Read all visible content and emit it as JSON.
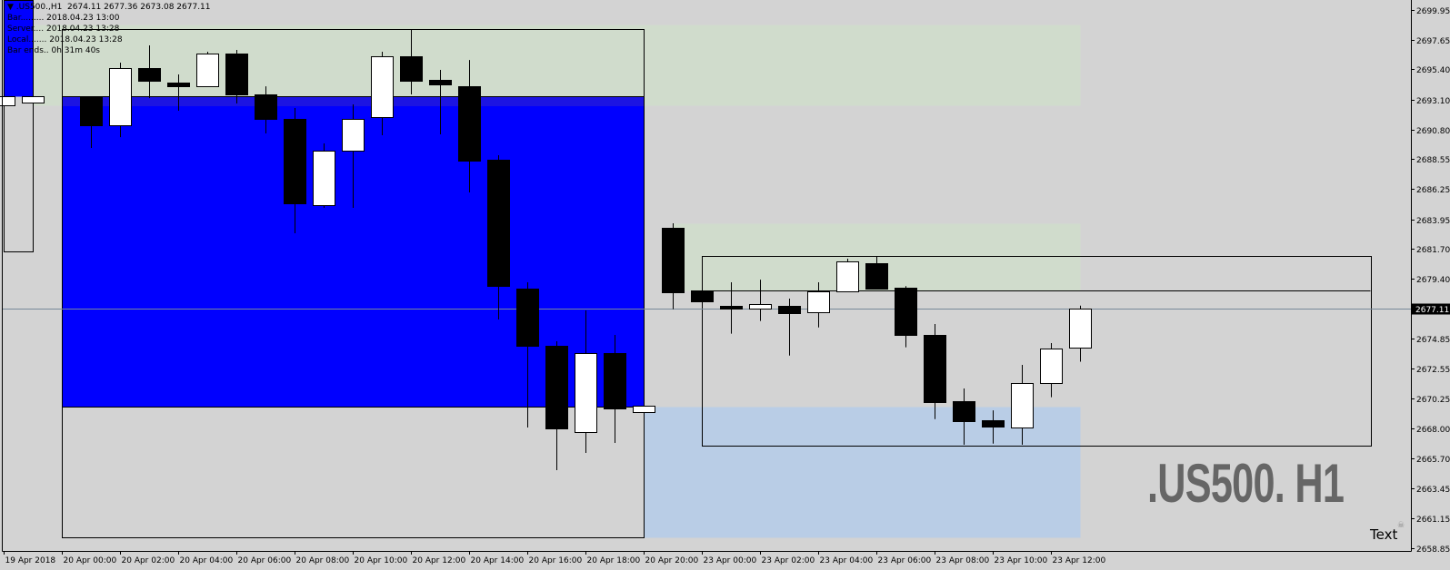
{
  "header": {
    "symbol_line": "▼ .US500.,H1  2674.11 2677.36 2673.08 2677.11",
    "bar": "Bar......... 2018.04.23 13:00",
    "server": "Server.... 2018.04.23 13:28",
    "local": "Local....... 2018.04.23 13:28",
    "bar_ends": "Bar ends.. 0h 31m 40s"
  },
  "watermark": ".US500. H1",
  "text_object": "Text",
  "text_object_icon": "skull-icon",
  "colors": {
    "background": "#d3d3d3",
    "bull_body": "#ffffff",
    "bear_body": "#000000",
    "blue_zone": "#0000ff",
    "supply_zone": "#d0dccc",
    "demand_zone": "#b9cde6",
    "price_line": "#778899"
  },
  "chart_data": {
    "type": "candlestick",
    "symbol": ".US500.",
    "timeframe": "H1",
    "ylim": [
      2658.85,
      2699.95
    ],
    "grid": false,
    "last_price": "2677.11",
    "y_ticks": [
      "2699.95",
      "2697.65",
      "2695.40",
      "2693.10",
      "2690.80",
      "2688.55",
      "2686.25",
      "2683.95",
      "2681.70",
      "2679.40",
      "2674.85",
      "2672.55",
      "2670.25",
      "2668.00",
      "2665.70",
      "2663.45",
      "2661.15",
      "2658.85"
    ],
    "x_ticks": [
      {
        "time": "2018-04-19 22:00",
        "label": "19 Apr 2018"
      },
      {
        "time": "2018-04-20 00:00",
        "label": "20 Apr 00:00"
      },
      {
        "time": "2018-04-20 02:00",
        "label": "20 Apr 02:00"
      },
      {
        "time": "2018-04-20 04:00",
        "label": "20 Apr 04:00"
      },
      {
        "time": "2018-04-20 06:00",
        "label": "20 Apr 06:00"
      },
      {
        "time": "2018-04-20 08:00",
        "label": "20 Apr 08:00"
      },
      {
        "time": "2018-04-20 10:00",
        "label": "20 Apr 10:00"
      },
      {
        "time": "2018-04-20 12:00",
        "label": "20 Apr 12:00"
      },
      {
        "time": "2018-04-20 14:00",
        "label": "20 Apr 14:00"
      },
      {
        "time": "2018-04-20 16:00",
        "label": "20 Apr 16:00"
      },
      {
        "time": "2018-04-20 18:00",
        "label": "20 Apr 18:00"
      },
      {
        "time": "2018-04-20 20:00",
        "label": "20 Apr 20:00"
      },
      {
        "time": "2018-04-23 00:00",
        "label": "23 Apr 00:00"
      },
      {
        "time": "2018-04-23 02:00",
        "label": "23 Apr 02:00"
      },
      {
        "time": "2018-04-23 04:00",
        "label": "23 Apr 04:00"
      },
      {
        "time": "2018-04-23 06:00",
        "label": "23 Apr 06:00"
      },
      {
        "time": "2018-04-23 08:00",
        "label": "23 Apr 08:00"
      },
      {
        "time": "2018-04-23 10:00",
        "label": "23 Apr 10:00"
      },
      {
        "time": "2018-04-23 12:00",
        "label": "23 Apr 12:00"
      }
    ],
    "candles": [
      {
        "t": "2018-04-19 22:00",
        "o": 2692.66,
        "h": 2694.39,
        "l": 2691.0,
        "c": 2693.35
      },
      {
        "t": "2018-04-19 23:00",
        "o": 2692.87,
        "h": 2693.35,
        "l": 2692.87,
        "c": 2693.35
      },
      {
        "t": "2018-04-20 01:00",
        "o": 2693.35,
        "h": 2693.35,
        "l": 2689.4,
        "c": 2691.13
      },
      {
        "t": "2018-04-20 02:00",
        "o": 2691.13,
        "h": 2695.92,
        "l": 2690.23,
        "c": 2695.5
      },
      {
        "t": "2018-04-20 03:00",
        "o": 2695.5,
        "h": 2697.23,
        "l": 2693.21,
        "c": 2694.53
      },
      {
        "t": "2018-04-20 04:00",
        "o": 2694.39,
        "h": 2695.02,
        "l": 2692.24,
        "c": 2694.11
      },
      {
        "t": "2018-04-20 05:00",
        "o": 2694.11,
        "h": 2696.75,
        "l": 2694.11,
        "c": 2696.61
      },
      {
        "t": "2018-04-20 06:00",
        "o": 2696.61,
        "h": 2696.89,
        "l": 2692.8,
        "c": 2693.49
      },
      {
        "t": "2018-04-20 07:00",
        "o": 2693.49,
        "h": 2694.11,
        "l": 2690.51,
        "c": 2691.62
      },
      {
        "t": "2018-04-20 08:00",
        "o": 2691.62,
        "h": 2692.45,
        "l": 2682.89,
        "c": 2685.18
      },
      {
        "t": "2018-04-20 09:00",
        "o": 2685.0,
        "h": 2689.75,
        "l": 2684.83,
        "c": 2689.19
      },
      {
        "t": "2018-04-20 10:00",
        "o": 2689.19,
        "h": 2692.73,
        "l": 2684.83,
        "c": 2691.62
      },
      {
        "t": "2018-04-20 11:00",
        "o": 2691.76,
        "h": 2696.75,
        "l": 2690.37,
        "c": 2696.4
      },
      {
        "t": "2018-04-20 12:00",
        "o": 2696.4,
        "h": 2698.48,
        "l": 2693.49,
        "c": 2694.53
      },
      {
        "t": "2018-04-20 13:00",
        "o": 2694.6,
        "h": 2695.36,
        "l": 2690.44,
        "c": 2694.25
      },
      {
        "t": "2018-04-20 14:00",
        "o": 2694.11,
        "h": 2696.12,
        "l": 2686.01,
        "c": 2688.43
      },
      {
        "t": "2018-04-20 15:00",
        "o": 2688.5,
        "h": 2688.85,
        "l": 2676.31,
        "c": 2678.87
      },
      {
        "t": "2018-04-20 16:00",
        "o": 2678.66,
        "h": 2679.15,
        "l": 2668.06,
        "c": 2674.3
      },
      {
        "t": "2018-04-20 17:00",
        "o": 2674.3,
        "h": 2674.64,
        "l": 2664.8,
        "c": 2667.99
      },
      {
        "t": "2018-04-20 18:00",
        "o": 2667.71,
        "h": 2677.0,
        "l": 2666.12,
        "c": 2673.74
      },
      {
        "t": "2018-04-20 19:00",
        "o": 2673.74,
        "h": 2675.13,
        "l": 2666.88,
        "c": 2669.51
      },
      {
        "t": "2018-04-20 20:00",
        "o": 2669.24,
        "h": 2669.72,
        "l": 2669.24,
        "c": 2669.72
      },
      {
        "t": "2018-04-20 21:00",
        "o": 2683.3,
        "h": 2683.65,
        "l": 2677.09,
        "c": 2678.4
      },
      {
        "t": "2018-04-23 00:00",
        "o": 2678.52,
        "h": 2678.52,
        "l": 2677.71,
        "c": 2677.71
      },
      {
        "t": "2018-04-23 01:00",
        "o": 2677.34,
        "h": 2679.15,
        "l": 2675.22,
        "c": 2677.12
      },
      {
        "t": "2018-04-23 02:00",
        "o": 2677.12,
        "h": 2679.35,
        "l": 2676.19,
        "c": 2677.46
      },
      {
        "t": "2018-04-23 03:00",
        "o": 2677.34,
        "h": 2677.9,
        "l": 2673.55,
        "c": 2676.81
      },
      {
        "t": "2018-04-23 04:00",
        "o": 2676.84,
        "h": 2679.15,
        "l": 2675.7,
        "c": 2678.45
      },
      {
        "t": "2018-04-23 05:00",
        "o": 2678.45,
        "h": 2680.95,
        "l": 2678.45,
        "c": 2680.72
      },
      {
        "t": "2018-04-23 06:00",
        "o": 2680.6,
        "h": 2681.14,
        "l": 2678.61,
        "c": 2678.68
      },
      {
        "t": "2018-04-23 07:00",
        "o": 2678.73,
        "h": 2678.85,
        "l": 2674.18,
        "c": 2675.15
      },
      {
        "t": "2018-04-23 08:00",
        "o": 2675.13,
        "h": 2675.96,
        "l": 2668.7,
        "c": 2670.02
      },
      {
        "t": "2018-04-23 09:00",
        "o": 2670.07,
        "h": 2671.04,
        "l": 2666.74,
        "c": 2668.56
      },
      {
        "t": "2018-04-23 10:00",
        "o": 2668.61,
        "h": 2669.37,
        "l": 2666.83,
        "c": 2668.15
      },
      {
        "t": "2018-04-23 11:00",
        "o": 2668.04,
        "h": 2672.84,
        "l": 2666.74,
        "c": 2671.43
      },
      {
        "t": "2018-04-23 12:00",
        "o": 2671.43,
        "h": 2674.5,
        "l": 2670.37,
        "c": 2674.07
      },
      {
        "t": "2018-04-23 13:00",
        "o": 2674.11,
        "h": 2677.36,
        "l": 2673.08,
        "c": 2677.11
      }
    ],
    "objects": [
      {
        "name": "supply-zone-upper",
        "t1": "2018-04-19 23:00",
        "t2": "2018-04-23 13:00",
        "p1": 2698.83,
        "p2": 2692.66,
        "fill": "#d0dccc"
      },
      {
        "name": "supply-zone-lower",
        "t1": "2018-04-20 21:00",
        "t2": "2018-04-23 13:00",
        "p1": 2683.65,
        "p2": 2678.52,
        "fill": "#d0dccc"
      },
      {
        "name": "demand-zone",
        "t1": "2018-04-20 20:00",
        "t2": "2018-04-23 13:00",
        "p1": 2669.68,
        "p2": 2659.67,
        "fill": "#b9cde6"
      },
      {
        "name": "blue-zone-left",
        "t1": "2018-04-19 22:00",
        "t2": "2018-04-19 23:00",
        "p1": 2700.7,
        "p2": 2693.35,
        "fill": "#0000ff"
      },
      {
        "name": "range-box-left",
        "t1": "2018-04-19 22:00",
        "t2": "2018-04-19 23:00",
        "p1": 2700.7,
        "p2": 2681.5,
        "stroke": "#000000"
      },
      {
        "name": "blue-zone",
        "t1": "2018-04-20 00:00",
        "t2": "2018-04-20 20:00",
        "p1": 2693.35,
        "p2": 2669.68,
        "fill": "#0000ff",
        "stroke": "#000000"
      },
      {
        "name": "range-box-friday",
        "t1": "2018-04-20 00:00",
        "t2": "2018-04-20 20:00",
        "p1": 2698.48,
        "p2": 2659.67,
        "stroke": "#000000"
      },
      {
        "name": "range-box-monday",
        "t1": "2018-04-23 00:00",
        "t2": "2018-04-23 23:00",
        "p1": 2681.16,
        "p2": 2666.69,
        "stroke": "#000000"
      },
      {
        "name": "level-line-2678",
        "t1": "2018-04-23 00:00",
        "t2": "2018-04-23 23:00",
        "p1": 2678.52,
        "p2": 2678.52,
        "stroke": "#000000"
      },
      {
        "name": "level-line-2677",
        "t1": "2018-04-23 00:00",
        "t2": "2018-04-23 23:00",
        "p1": 2677.11,
        "p2": 2677.11,
        "stroke": "#000000"
      }
    ]
  }
}
